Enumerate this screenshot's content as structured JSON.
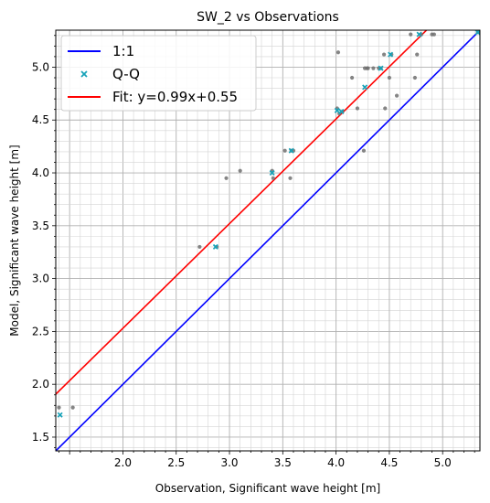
{
  "chart_data": {
    "type": "scatter",
    "title": "SW_2 vs Observations",
    "xlabel": "Observation, Significant wave height [m]",
    "ylabel": "Model, Significant wave height [m]",
    "xlim": [
      1.37,
      5.35
    ],
    "ylim": [
      1.37,
      5.35
    ],
    "xticks": [
      2.0,
      2.5,
      3.0,
      3.5,
      4.0,
      4.5,
      5.0
    ],
    "yticks": [
      1.5,
      2.0,
      2.5,
      3.0,
      3.5,
      4.0,
      4.5,
      5.0
    ],
    "xtick_labels": [
      "2.0",
      "2.5",
      "3.0",
      "3.5",
      "4.0",
      "4.5",
      "5.0"
    ],
    "ytick_labels": [
      "1.5",
      "2.0",
      "2.5",
      "3.0",
      "3.5",
      "4.0",
      "4.5",
      "5.0"
    ],
    "grid": true,
    "legend_position": "top-left",
    "legend": [
      {
        "label": "1:1",
        "kind": "line",
        "color": "#0000ff"
      },
      {
        "label": "Q-Q",
        "kind": "marker",
        "color": "#17a2b8"
      },
      {
        "label": "Fit: y=0.99x+0.55",
        "kind": "line",
        "color": "#ff0000"
      }
    ],
    "series": [
      {
        "kind": "scatter",
        "color": "#707070",
        "points": [
          [
            1.4,
            1.78
          ],
          [
            1.53,
            1.78
          ],
          [
            2.72,
            3.3
          ],
          [
            2.88,
            3.3
          ],
          [
            2.97,
            3.95
          ],
          [
            3.1,
            4.02
          ],
          [
            3.4,
            4.02
          ],
          [
            3.41,
            3.95
          ],
          [
            3.52,
            4.21
          ],
          [
            3.57,
            3.95
          ],
          [
            3.58,
            4.21
          ],
          [
            3.6,
            4.21
          ],
          [
            4.01,
            4.61
          ],
          [
            4.02,
            5.14
          ],
          [
            4.03,
            4.56
          ],
          [
            4.06,
            4.58
          ],
          [
            4.15,
            4.9
          ],
          [
            4.2,
            4.61
          ],
          [
            4.26,
            4.21
          ],
          [
            4.27,
            4.99
          ],
          [
            4.29,
            4.99
          ],
          [
            4.3,
            4.99
          ],
          [
            4.35,
            4.99
          ],
          [
            4.4,
            4.99
          ],
          [
            4.42,
            4.99
          ],
          [
            4.45,
            5.12
          ],
          [
            4.46,
            4.61
          ],
          [
            4.5,
            4.9
          ],
          [
            4.52,
            5.12
          ],
          [
            4.57,
            4.73
          ],
          [
            4.7,
            5.31
          ],
          [
            4.74,
            4.9
          ],
          [
            4.76,
            5.12
          ],
          [
            4.8,
            5.31
          ],
          [
            4.9,
            5.31
          ],
          [
            4.92,
            5.31
          ],
          [
            5.33,
            5.33
          ]
        ]
      },
      {
        "kind": "qq",
        "name": "Q-Q",
        "color": "#17a2b8",
        "points": [
          [
            1.41,
            1.71
          ],
          [
            2.87,
            3.3
          ],
          [
            3.4,
            4.0
          ],
          [
            3.58,
            4.21
          ],
          [
            4.01,
            4.59
          ],
          [
            4.05,
            4.58
          ],
          [
            4.27,
            4.81
          ],
          [
            4.42,
            4.99
          ],
          [
            4.51,
            5.12
          ],
          [
            4.78,
            5.31
          ],
          [
            5.33,
            5.33
          ]
        ]
      },
      {
        "kind": "line",
        "name": "1:1",
        "color": "#0000ff",
        "slope": 1.0,
        "intercept": 0.0
      },
      {
        "kind": "line",
        "name": "Fit: y=0.99x+0.55",
        "color": "#ff0000",
        "slope": 0.99,
        "intercept": 0.55
      }
    ]
  }
}
